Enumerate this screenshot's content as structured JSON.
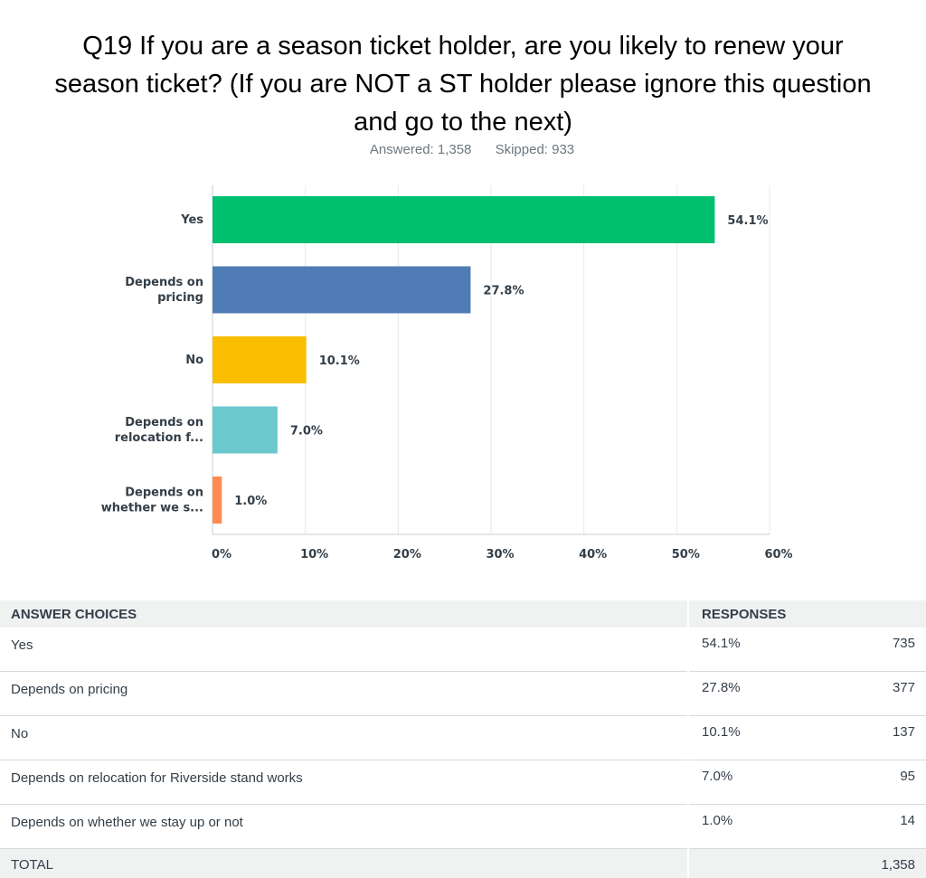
{
  "header": {
    "title_lines": [
      "Q19 If you are a season ticket holder, are you likely to renew your",
      "season ticket? (If you are NOT a ST holder please ignore this question",
      "and go to the next)"
    ],
    "answered": "Answered: 1,358",
    "skipped": "Skipped: 933"
  },
  "chart_data": {
    "type": "bar",
    "orientation": "horizontal",
    "categories": [
      [
        "Yes"
      ],
      [
        "Depends on",
        "pricing"
      ],
      [
        "No"
      ],
      [
        "Depends on",
        "relocation f..."
      ],
      [
        "Depends on",
        "whether we s..."
      ]
    ],
    "values": [
      54.1,
      27.8,
      10.1,
      7.0,
      1.0
    ],
    "value_labels": [
      "54.1%",
      "27.8%",
      "10.1%",
      "7.0%",
      "1.0%"
    ],
    "colors": [
      "#00bf6f",
      "#507cb6",
      "#f9be00",
      "#6bc8cd",
      "#ff8b4f"
    ],
    "xlim": [
      0,
      60
    ],
    "xticks": [
      0,
      10,
      20,
      30,
      40,
      50,
      60
    ],
    "xtick_labels": [
      "0%",
      "10%",
      "20%",
      "30%",
      "40%",
      "50%",
      "60%"
    ],
    "grid": true
  },
  "table": {
    "headers": {
      "choices": "ANSWER CHOICES",
      "responses": "RESPONSES"
    },
    "rows": [
      {
        "choice": "Yes",
        "percent": "54.1%",
        "count": "735"
      },
      {
        "choice": "Depends on pricing",
        "percent": "27.8%",
        "count": "377"
      },
      {
        "choice": "No",
        "percent": "10.1%",
        "count": "137"
      },
      {
        "choice": "Depends on relocation for Riverside stand works",
        "percent": "7.0%",
        "count": "95"
      },
      {
        "choice": "Depends on whether we stay up or not",
        "percent": "1.0%",
        "count": "14"
      }
    ],
    "total_label": "TOTAL",
    "total_count": "1,358"
  }
}
